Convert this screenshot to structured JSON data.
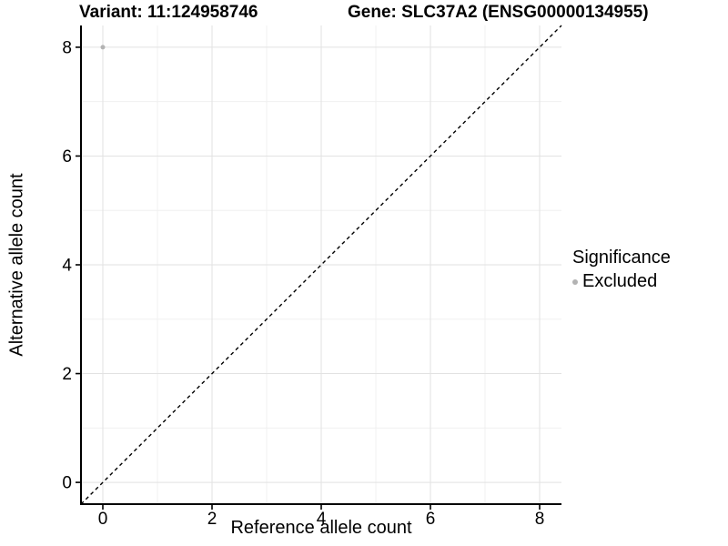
{
  "titles": {
    "variant": "Variant: 11:124958746",
    "gene": "Gene: SLC37A2 (ENSG00000134955)"
  },
  "legend": {
    "title": "Significance",
    "items": [
      {
        "label": "Excluded",
        "color": "#b3b3b3"
      }
    ]
  },
  "colors": {
    "point": "#b3b3b3",
    "major_grid": "#e2e2e2",
    "minor_grid": "#f0f0f0",
    "axis_line": "#000000",
    "text": "#000000",
    "background": "#ffffff"
  },
  "chart_data": {
    "type": "scatter",
    "title": "Variant: 11:124958746  /  Gene: SLC37A2 (ENSG00000134955)",
    "xlabel": "Reference allele count",
    "ylabel": "Alternative allele count",
    "xlim": [
      -0.4,
      8.4
    ],
    "ylim": [
      -0.4,
      8.4
    ],
    "x_ticks": [
      0,
      2,
      4,
      6,
      8
    ],
    "y_ticks": [
      0,
      2,
      4,
      6,
      8
    ],
    "x_minor_ticks": [
      1,
      3,
      5,
      7
    ],
    "y_minor_ticks": [
      1,
      3,
      5,
      7
    ],
    "grid": true,
    "legend_position": "right",
    "series": [
      {
        "name": "Excluded",
        "color": "#b3b3b3",
        "points": [
          {
            "x": 0,
            "y": 8
          }
        ]
      }
    ],
    "reference_line": {
      "type": "identity",
      "slope": 1,
      "intercept": 0,
      "style": "dashed",
      "color": "#000000"
    }
  }
}
